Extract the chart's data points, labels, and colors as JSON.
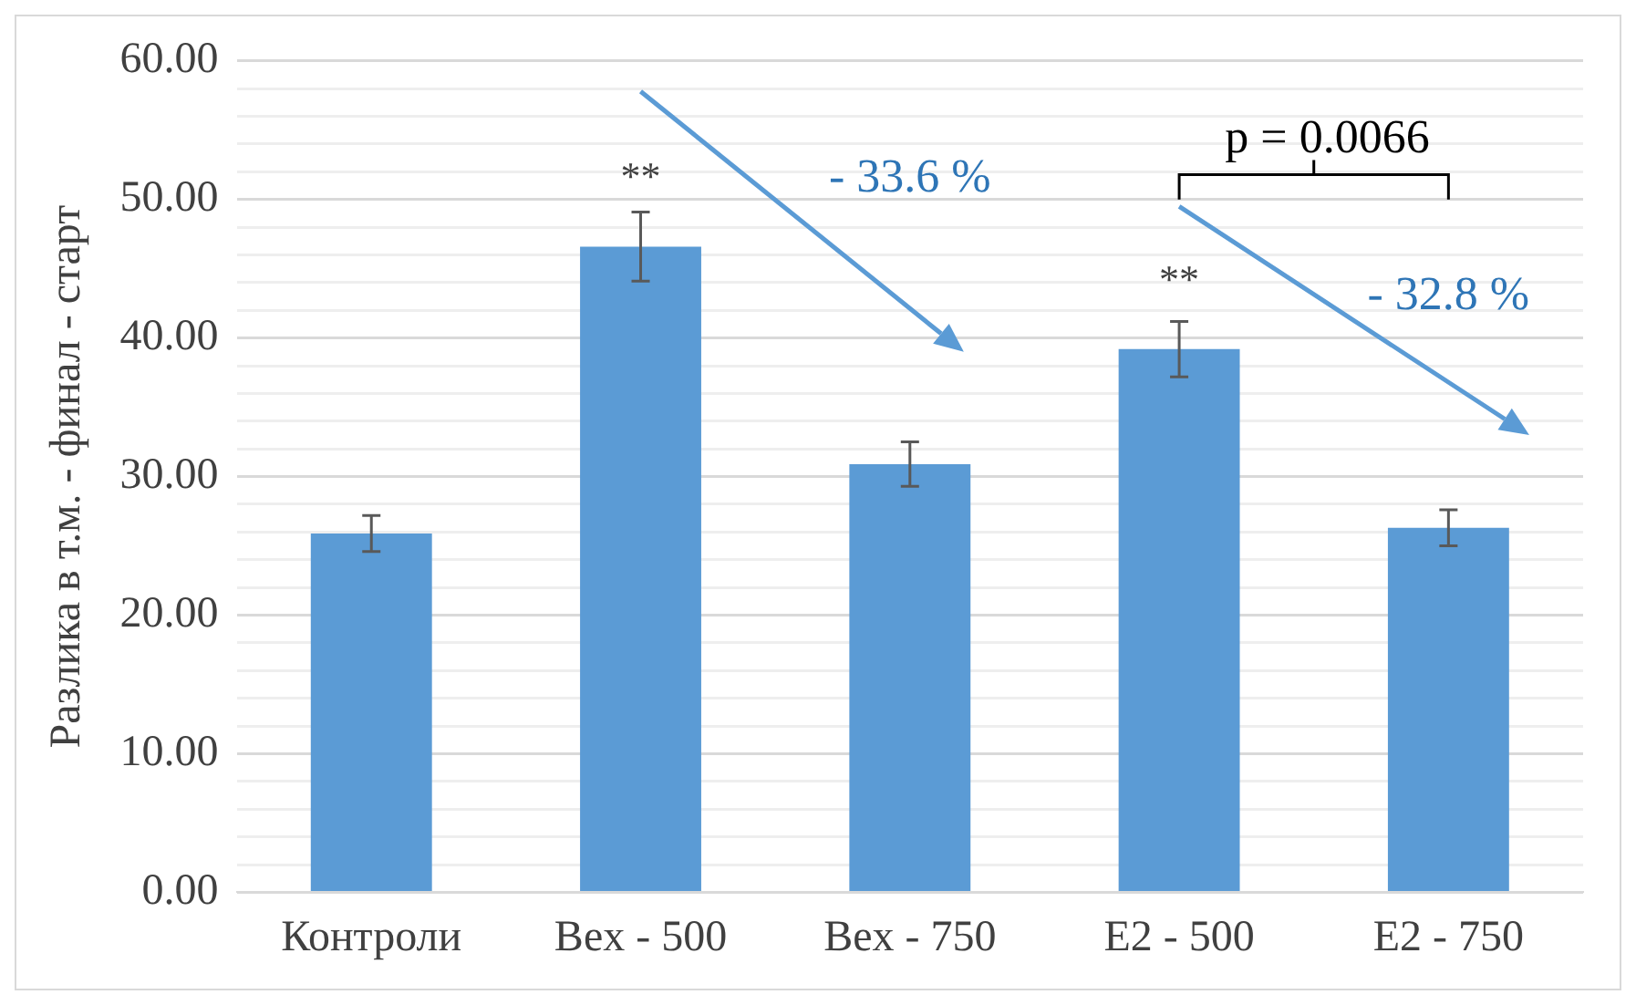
{
  "chart_data": {
    "type": "bar",
    "ylabel": "Разлика в т.м. - финал - старт",
    "categories": [
      "Контроли",
      "Bex - 500",
      "Bex - 750",
      "E2 - 500",
      "E2 - 750"
    ],
    "values": [
      25.9,
      46.6,
      30.9,
      39.2,
      26.3
    ],
    "errors": [
      1.3,
      2.5,
      1.6,
      2.0,
      1.3
    ],
    "color": "#5b9bd5",
    "ylim": [
      0,
      60
    ],
    "yticks": [
      {
        "value": 0,
        "label": "0.00"
      },
      {
        "value": 2,
        "label": null
      },
      {
        "value": 4,
        "label": null
      },
      {
        "value": 6,
        "label": null
      },
      {
        "value": 8,
        "label": null
      },
      {
        "value": 10,
        "label": "10.00"
      },
      {
        "value": 12,
        "label": null
      },
      {
        "value": 14,
        "label": null
      },
      {
        "value": 16,
        "label": null
      },
      {
        "value": 18,
        "label": null
      },
      {
        "value": 20,
        "label": "20.00"
      },
      {
        "value": 22,
        "label": null
      },
      {
        "value": 24,
        "label": null
      },
      {
        "value": 26,
        "label": null
      },
      {
        "value": 28,
        "label": null
      },
      {
        "value": 30,
        "label": "30.00"
      },
      {
        "value": 32,
        "label": null
      },
      {
        "value": 34,
        "label": null
      },
      {
        "value": 36,
        "label": null
      },
      {
        "value": 38,
        "label": null
      },
      {
        "value": 40,
        "label": "40.00"
      },
      {
        "value": 42,
        "label": null
      },
      {
        "value": 44,
        "label": null
      },
      {
        "value": 46,
        "label": null
      },
      {
        "value": 48,
        "label": null
      },
      {
        "value": 50,
        "label": "50.00"
      },
      {
        "value": 52,
        "label": null
      },
      {
        "value": 54,
        "label": null
      },
      {
        "value": 56,
        "label": null
      },
      {
        "value": 58,
        "label": null
      },
      {
        "value": 60,
        "label": "60.00"
      }
    ],
    "grid": "y",
    "annotations": [
      "**",
      "**",
      "- 33.6 %",
      "- 32.8 %",
      "p = 0.0066"
    ]
  }
}
